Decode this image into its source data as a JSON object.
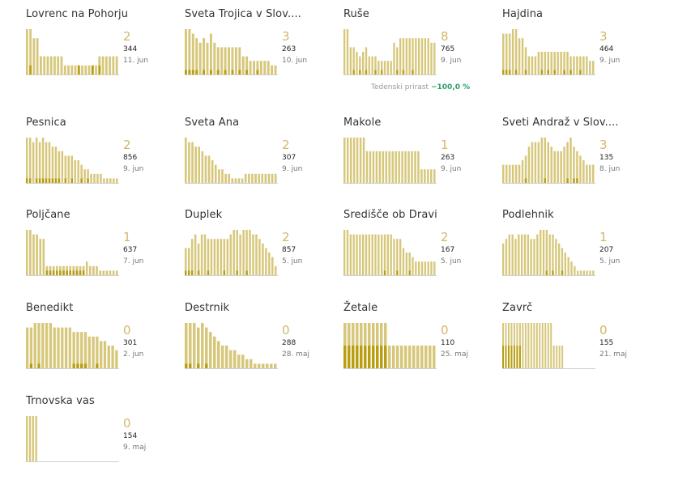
{
  "colors": {
    "bar": "#d6c77a",
    "highlight": "#b89e10",
    "count": "#d2b86a",
    "axis": "#d0d0d0"
  },
  "weekly_label": "Tedenski prirast",
  "weekly_value": "−100,0 %",
  "chart_data": [
    {
      "type": "bar",
      "title": "Lovrenc na Pohorju",
      "count": "2",
      "total": "344",
      "date": "11. jun",
      "values": [
        10,
        10,
        8,
        8,
        4,
        4,
        4,
        4,
        4,
        4,
        4,
        2,
        2,
        2,
        2,
        2,
        2,
        2,
        2,
        2,
        2,
        4,
        4,
        4,
        4,
        4,
        4
      ],
      "highlight": [
        0,
        2,
        0,
        0,
        0,
        0,
        0,
        0,
        0,
        0,
        0,
        0,
        0,
        0,
        0,
        2,
        0,
        0,
        0,
        2,
        0,
        2,
        0,
        0,
        0,
        0,
        0
      ]
    },
    {
      "type": "bar",
      "title": "Sveta Trojica v Slov....",
      "count": "3",
      "total": "263",
      "date": "10. jun",
      "values": [
        10,
        10,
        9,
        8,
        7,
        8,
        7,
        9,
        7,
        6,
        6,
        6,
        6,
        6,
        6,
        6,
        4,
        4,
        3,
        3,
        3,
        3,
        3,
        3,
        2,
        2
      ],
      "highlight": [
        1,
        1,
        1,
        1,
        0,
        1,
        0,
        1,
        0,
        1,
        0,
        1,
        0,
        1,
        0,
        1,
        0,
        1,
        0,
        0,
        1,
        0,
        0,
        0,
        0,
        0
      ]
    },
    {
      "type": "bar",
      "title": "Ruše",
      "count": "8",
      "total": "765",
      "date": "9. jun",
      "values": [
        10,
        10,
        6,
        6,
        5,
        4,
        5,
        6,
        4,
        4,
        4,
        3,
        3,
        3,
        3,
        3,
        7,
        6,
        8,
        8,
        8,
        8,
        8,
        8,
        8,
        8,
        8,
        8,
        7,
        7
      ],
      "highlight": [
        0,
        0,
        0,
        1,
        0,
        1,
        0,
        1,
        0,
        0,
        1,
        0,
        1,
        0,
        0,
        0,
        0,
        1,
        0,
        1,
        0,
        0,
        1,
        0,
        0,
        0,
        0,
        0,
        0,
        0
      ]
    },
    {
      "type": "bar",
      "title": "Hajdina",
      "count": "3",
      "total": "464",
      "date": "9. jun",
      "values": [
        9,
        9,
        9,
        10,
        10,
        8,
        8,
        6,
        4,
        4,
        4,
        5,
        5,
        5,
        5,
        5,
        5,
        5,
        5,
        5,
        5,
        4,
        4,
        4,
        4,
        4,
        4,
        3,
        3
      ],
      "highlight": [
        1,
        1,
        1,
        0,
        1,
        0,
        0,
        1,
        0,
        0,
        0,
        0,
        1,
        0,
        1,
        0,
        1,
        0,
        0,
        1,
        0,
        1,
        0,
        0,
        1,
        0,
        0,
        0,
        0
      ]
    },
    {
      "type": "bar",
      "title": "Pesnica",
      "count": "2",
      "total": "856",
      "date": "9. jun",
      "values": [
        10,
        10,
        9,
        10,
        9,
        10,
        9,
        9,
        8,
        8,
        7,
        7,
        6,
        6,
        6,
        5,
        5,
        4,
        3,
        3,
        2,
        2,
        2,
        2,
        1,
        1,
        1,
        1,
        1
      ],
      "highlight": [
        1,
        1,
        0,
        1,
        1,
        1,
        1,
        1,
        1,
        1,
        1,
        0,
        1,
        0,
        1,
        0,
        0,
        1,
        0,
        1,
        0,
        0,
        0,
        0,
        0,
        0,
        0,
        0,
        0
      ]
    },
    {
      "type": "bar",
      "title": "Sveta Ana",
      "count": "2",
      "total": "307",
      "date": "9. jun",
      "values": [
        10,
        9,
        9,
        8,
        8,
        7,
        6,
        6,
        5,
        4,
        3,
        3,
        2,
        2,
        1,
        1,
        1,
        1,
        2,
        2,
        2,
        2,
        2,
        2,
        2,
        2,
        2,
        2
      ],
      "highlight": [
        0,
        0,
        0,
        0,
        0,
        0,
        0,
        0,
        0,
        0,
        0,
        0,
        0,
        0,
        0,
        0,
        0,
        0,
        0,
        0,
        0,
        0,
        0,
        0,
        0,
        0,
        0,
        0
      ]
    },
    {
      "type": "bar",
      "title": "Makole",
      "count": "1",
      "total": "263",
      "date": "9. jun",
      "values": [
        10,
        10,
        10,
        10,
        10,
        10,
        10,
        7,
        7,
        7,
        7,
        7,
        7,
        7,
        7,
        7,
        7,
        7,
        7,
        7,
        7,
        7,
        7,
        7,
        3,
        3,
        3,
        3,
        3
      ],
      "highlight": [
        0,
        0,
        0,
        0,
        0,
        0,
        0,
        0,
        0,
        0,
        0,
        0,
        0,
        0,
        0,
        0,
        0,
        0,
        0,
        0,
        0,
        0,
        0,
        0,
        0,
        0,
        0,
        0,
        0
      ]
    },
    {
      "type": "bar",
      "title": "Sveti Andraž v Slov....",
      "count": "3",
      "total": "135",
      "date": "8. jun",
      "values": [
        4,
        4,
        4,
        4,
        4,
        4,
        5,
        6,
        8,
        9,
        9,
        9,
        10,
        10,
        9,
        8,
        7,
        7,
        7,
        8,
        9,
        10,
        8,
        7,
        6,
        5,
        4,
        4,
        4
      ],
      "highlight": [
        0,
        0,
        0,
        0,
        0,
        0,
        0,
        1,
        0,
        0,
        0,
        0,
        0,
        1,
        0,
        0,
        0,
        0,
        0,
        0,
        1,
        0,
        1,
        1,
        0,
        0,
        0,
        0,
        0
      ]
    },
    {
      "type": "bar",
      "title": "Poljčane",
      "count": "1",
      "total": "637",
      "date": "7. jun",
      "values": [
        10,
        10,
        9,
        9,
        8,
        8,
        2,
        2,
        2,
        2,
        2,
        2,
        2,
        2,
        2,
        2,
        2,
        2,
        3,
        2,
        2,
        2,
        1,
        1,
        1,
        1,
        1,
        1
      ],
      "highlight": [
        0,
        0,
        0,
        0,
        0,
        0,
        1,
        1,
        1,
        1,
        1,
        1,
        1,
        1,
        1,
        1,
        1,
        1,
        0,
        0,
        0,
        0,
        0,
        0,
        0,
        0,
        0,
        0
      ]
    },
    {
      "type": "bar",
      "title": "Duplek",
      "count": "2",
      "total": "857",
      "date": "5. jun",
      "values": [
        6,
        6,
        8,
        9,
        7,
        9,
        9,
        8,
        8,
        8,
        8,
        8,
        8,
        8,
        9,
        10,
        10,
        9,
        10,
        10,
        10,
        9,
        9,
        8,
        7,
        6,
        5,
        4,
        2
      ],
      "highlight": [
        1,
        1,
        1,
        0,
        1,
        0,
        0,
        1,
        0,
        0,
        0,
        0,
        1,
        0,
        0,
        0,
        1,
        0,
        0,
        1,
        0,
        0,
        0,
        0,
        0,
        0,
        0,
        0,
        0
      ]
    },
    {
      "type": "bar",
      "title": "Središče ob Dravi",
      "count": "2",
      "total": "167",
      "date": "5. jun",
      "values": [
        10,
        10,
        9,
        9,
        9,
        9,
        9,
        9,
        9,
        9,
        9,
        9,
        9,
        9,
        9,
        9,
        8,
        8,
        8,
        6,
        5,
        5,
        4,
        3,
        3,
        3,
        3,
        3,
        3,
        3
      ],
      "highlight": [
        0,
        0,
        0,
        0,
        0,
        0,
        0,
        0,
        0,
        0,
        0,
        0,
        0,
        1,
        0,
        0,
        0,
        1,
        0,
        0,
        0,
        1,
        0,
        0,
        0,
        0,
        0,
        0,
        0,
        0
      ]
    },
    {
      "type": "bar",
      "title": "Podlehnik",
      "count": "1",
      "total": "207",
      "date": "5. jun",
      "values": [
        7,
        8,
        9,
        9,
        8,
        9,
        9,
        9,
        9,
        8,
        8,
        9,
        10,
        10,
        10,
        9,
        9,
        8,
        7,
        6,
        5,
        4,
        3,
        2,
        1,
        1,
        1,
        1,
        1,
        1
      ],
      "highlight": [
        0,
        0,
        0,
        0,
        0,
        0,
        0,
        0,
        0,
        0,
        0,
        0,
        0,
        0,
        1,
        0,
        1,
        0,
        0,
        1,
        0,
        0,
        0,
        0,
        0,
        0,
        0,
        0,
        0,
        0
      ]
    },
    {
      "type": "bar",
      "title": "Benedikt",
      "count": "0",
      "total": "301",
      "date": "2. jun",
      "values": [
        9,
        9,
        10,
        10,
        10,
        10,
        10,
        9,
        9,
        9,
        9,
        9,
        8,
        8,
        8,
        8,
        7,
        7,
        7,
        6,
        6,
        5,
        5,
        4
      ],
      "highlight": [
        0,
        1,
        0,
        1,
        0,
        0,
        0,
        0,
        0,
        0,
        0,
        0,
        1,
        1,
        1,
        1,
        0,
        0,
        1,
        0,
        0,
        0,
        0,
        0
      ]
    },
    {
      "type": "bar",
      "title": "Destrnik",
      "count": "0",
      "total": "288",
      "date": "28. maj",
      "values": [
        10,
        10,
        10,
        9,
        10,
        9,
        8,
        7,
        6,
        5,
        5,
        4,
        4,
        3,
        3,
        2,
        2,
        1,
        1,
        1,
        1,
        1,
        1
      ],
      "highlight": [
        1,
        1,
        0,
        1,
        0,
        1,
        0,
        0,
        0,
        0,
        0,
        0,
        0,
        0,
        0,
        0,
        0,
        0,
        0,
        0,
        0,
        0,
        0
      ]
    },
    {
      "type": "bar",
      "title": "Žetale",
      "count": "0",
      "total": "110",
      "date": "25. maj",
      "values": [
        10,
        10,
        10,
        10,
        10,
        10,
        10,
        10,
        10,
        10,
        10,
        5,
        5,
        5,
        5,
        5,
        5,
        5,
        5,
        5,
        5,
        5,
        5
      ],
      "highlight": [
        5,
        5,
        5,
        5,
        5,
        5,
        5,
        5,
        5,
        5,
        5,
        0,
        0,
        0,
        0,
        0,
        0,
        0,
        0,
        0,
        0,
        0,
        0
      ]
    },
    {
      "type": "bar",
      "title": "Zavrč",
      "count": "0",
      "total": "155",
      "date": "21. maj",
      "values": [
        10,
        10,
        10,
        10,
        10,
        10,
        10,
        10,
        10,
        10,
        10,
        10,
        10,
        10,
        10,
        10,
        10,
        10,
        5,
        5,
        5,
        5,
        0,
        0,
        0,
        0,
        0,
        0,
        0,
        0,
        0,
        0,
        0
      ],
      "highlight": [
        5,
        5,
        5,
        5,
        5,
        5,
        5,
        0,
        0,
        0,
        0,
        0,
        0,
        0,
        0,
        0,
        0,
        0,
        0,
        0,
        0,
        0,
        0,
        0,
        0,
        0,
        0,
        0,
        0,
        0,
        0,
        0,
        0
      ]
    },
    {
      "type": "bar",
      "title": "Trnovska vas",
      "count": "0",
      "total": "154",
      "date": "9. maj",
      "values": [
        10,
        10,
        10,
        10,
        0,
        0,
        0,
        0,
        0,
        0,
        0,
        0,
        0,
        0,
        0,
        0,
        0,
        0,
        0,
        0,
        0,
        0,
        0,
        0,
        0,
        0,
        0,
        0,
        0,
        0
      ],
      "highlight": [
        0,
        0,
        0,
        0,
        0,
        0,
        0,
        0,
        0,
        0,
        0,
        0,
        0,
        0,
        0,
        0,
        0,
        0,
        0,
        0,
        0,
        0,
        0,
        0,
        0,
        0,
        0,
        0,
        0,
        0
      ]
    }
  ]
}
